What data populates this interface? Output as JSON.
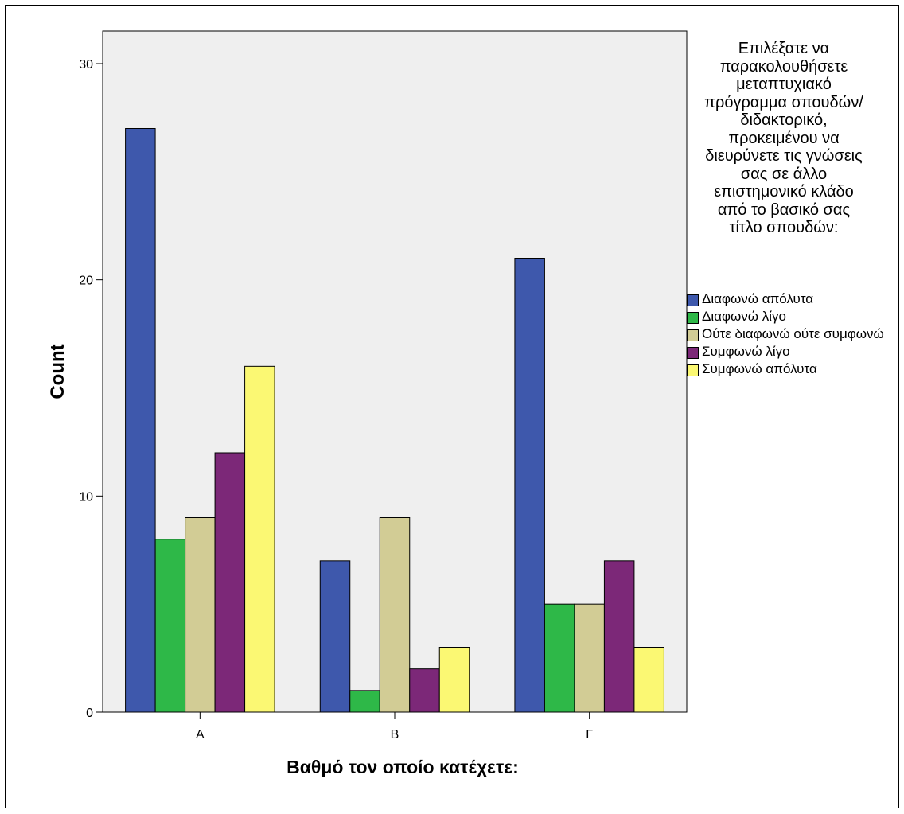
{
  "chart_data": {
    "type": "bar",
    "xlabel": "Βαθμό τον οποίο κατέχετε:",
    "ylabel": "Count",
    "ylim": [
      0,
      30
    ],
    "yticks": [
      0,
      10,
      20,
      30
    ],
    "categories": [
      "Α",
      "Β",
      "Γ"
    ],
    "legend_title": "Επιλέξατε να\nπαρακολουθήσετε\nμεταπτυχιακό\nπρόγραμμα σπουδών/\nδιδακτορικό,\nπροκειμένου να\nδιευρύνετε τις γνώσεις\nσας σε άλλο\nεπιστημονικό κλάδο\nαπό το βασικό σας\nτίτλο σπουδών:",
    "legend_position": "right",
    "grid": false,
    "background": "#efefef",
    "series": [
      {
        "name": "Διαφωνώ απόλυτα",
        "color": "#3e58ac",
        "values": [
          27,
          7,
          21
        ]
      },
      {
        "name": "Διαφωνώ λίγο",
        "color": "#2eb848",
        "values": [
          8,
          1,
          5
        ]
      },
      {
        "name": "Ούτε διαφωνώ ούτε συμφωνώ",
        "color": "#d2cc95",
        "values": [
          9,
          9,
          5
        ]
      },
      {
        "name": "Συμφωνώ λίγο",
        "color": "#7c2878",
        "values": [
          12,
          2,
          7
        ]
      },
      {
        "name": "Συμφωνώ απόλυτα",
        "color": "#fbf873",
        "values": [
          16,
          3,
          3
        ]
      }
    ]
  }
}
